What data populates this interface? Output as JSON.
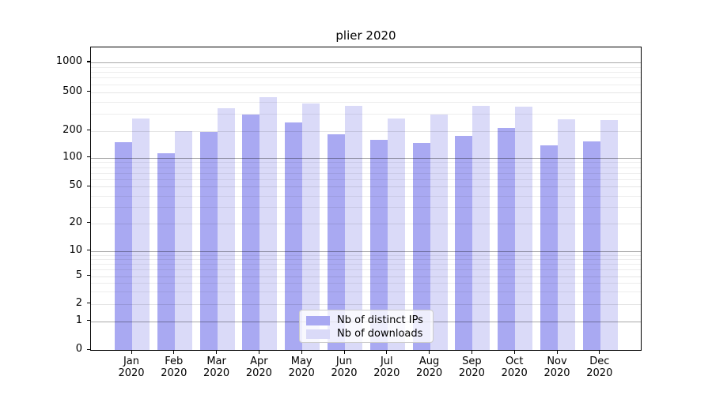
{
  "title": "plier 2020",
  "colors": {
    "ips": "#a9a9f2",
    "downloads": "#dadaf8",
    "axis": "#000000"
  },
  "legend": {
    "items": [
      {
        "label": "Nb of distinct IPs",
        "color_key": "ips"
      },
      {
        "label": "Nb of downloads",
        "color_key": "downloads"
      }
    ]
  },
  "y_axis": {
    "ticks": [
      {
        "value": 0,
        "label": "0",
        "f": 1.0,
        "major": false
      },
      {
        "value": 1,
        "label": "1",
        "f": 0.9052,
        "major": true
      },
      {
        "value": 2,
        "label": "2",
        "f": 0.8481,
        "major": false
      },
      {
        "value": 5,
        "label": "5",
        "f": 0.7558,
        "major": false
      },
      {
        "value": 10,
        "label": "10",
        "f": 0.6727,
        "major": true
      },
      {
        "value": 20,
        "label": "20",
        "f": 0.5818,
        "major": false
      },
      {
        "value": 50,
        "label": "50",
        "f": 0.4605,
        "major": false
      },
      {
        "value": 100,
        "label": "100",
        "f": 0.3649,
        "major": true
      },
      {
        "value": 200,
        "label": "200",
        "f": 0.2761,
        "major": false
      },
      {
        "value": 500,
        "label": "500",
        "f": 0.1475,
        "major": false
      },
      {
        "value": 1000,
        "label": "1000",
        "f": 0.0494,
        "major": true
      }
    ],
    "minor_values": [
      3,
      4,
      6,
      7,
      8,
      9,
      30,
      40,
      60,
      70,
      80,
      90,
      300,
      400,
      600,
      700,
      800,
      900
    ]
  },
  "x_axis": {
    "months": [
      "Jan",
      "Feb",
      "Mar",
      "Apr",
      "May",
      "Jun",
      "Jul",
      "Aug",
      "Sep",
      "Oct",
      "Nov",
      "Dec"
    ],
    "year": "2020"
  },
  "chart_data": {
    "type": "bar",
    "title": "plier 2020",
    "categories": [
      "Jan 2020",
      "Feb 2020",
      "Mar 2020",
      "Apr 2020",
      "May 2020",
      "Jun 2020",
      "Jul 2020",
      "Aug 2020",
      "Sep 2020",
      "Oct 2020",
      "Nov 2020",
      "Dec 2020"
    ],
    "series": [
      {
        "name": "Nb of distinct IPs",
        "color_key": "ips",
        "values": [
          149,
          113,
          197,
          297,
          246,
          185,
          158,
          148,
          176,
          216,
          138,
          154
        ]
      },
      {
        "name": "Nb of downloads",
        "color_key": "downloads",
        "values": [
          267,
          201,
          344,
          447,
          380,
          359,
          270,
          297,
          359,
          357,
          262,
          260
        ]
      }
    ],
    "xlabel": "",
    "ylabel": "",
    "yscale": "symlog",
    "yticks": [
      0,
      1,
      2,
      5,
      10,
      20,
      50,
      100,
      200,
      500,
      1000
    ],
    "ylim": [
      0,
      1430
    ],
    "grid": "horizontal",
    "legend_position": "inside lower center"
  }
}
